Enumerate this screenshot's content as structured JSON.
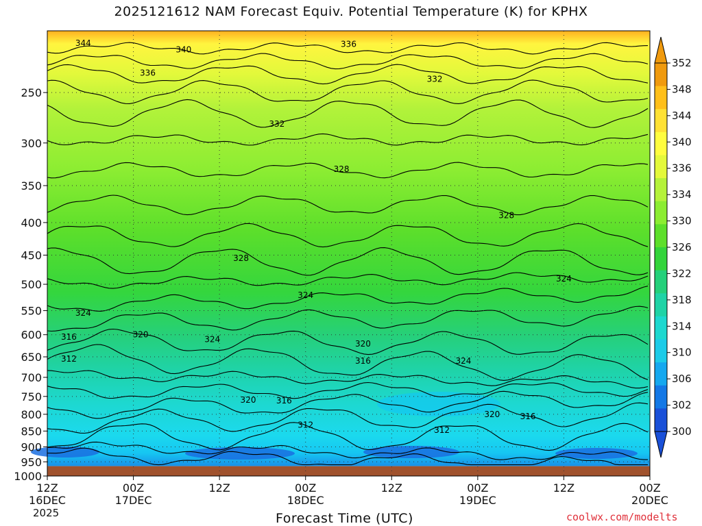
{
  "title": "2025121612 NAM Forecast Equiv. Potential Temperature (K) for KPHX",
  "credit": "coolwx.com/modelts",
  "chart_data": {
    "type": "heatmap",
    "title": "2025121612 NAM Forecast Equiv. Potential Temperature (K) for KPHX",
    "xlabel": "Forecast Time (UTC)",
    "ylabel": "",
    "x_ticks": [
      {
        "label": "12Z",
        "sub": "16DEC",
        "hour": 0
      },
      {
        "label": "00Z",
        "sub": "17DEC",
        "hour": 12
      },
      {
        "label": "12Z",
        "sub": "",
        "hour": 24
      },
      {
        "label": "00Z",
        "sub": "18DEC",
        "hour": 36
      },
      {
        "label": "12Z",
        "sub": "",
        "hour": 48
      },
      {
        "label": "00Z",
        "sub": "19DEC",
        "hour": 60
      },
      {
        "label": "12Z",
        "sub": "",
        "hour": 72
      },
      {
        "label": "00Z",
        "sub": "20DEC",
        "hour": 84
      }
    ],
    "year_label": "2025",
    "xlim": [
      0,
      84
    ],
    "y_ticks": [
      250,
      300,
      350,
      400,
      450,
      500,
      550,
      600,
      650,
      700,
      750,
      800,
      850,
      900,
      950,
      1000
    ],
    "ylim_hpa": [
      200,
      1000
    ],
    "ground_hpa": 965,
    "colorbar": {
      "labels": [
        352,
        348,
        344,
        340,
        336,
        334,
        330,
        326,
        322,
        318,
        314,
        310,
        306,
        302,
        300
      ],
      "bands": [
        "#f09a0e",
        "#ffbf1a",
        "#ffe135",
        "#fffd3f",
        "#e4f93b",
        "#b5f23a",
        "#8ced32",
        "#5ddf2b",
        "#33d43b",
        "#24d07a",
        "#1fd3a6",
        "#1dd8cf",
        "#1ccbe8",
        "#15a8ef",
        "#1478e6",
        "#1a50d8"
      ]
    },
    "contours": [
      {
        "value": "344",
        "hour": 5,
        "hpa": 209
      },
      {
        "value": "340",
        "hour": 19,
        "hpa": 214
      },
      {
        "value": "336",
        "hour": 42,
        "hpa": 210
      },
      {
        "value": "336",
        "hour": 14,
        "hpa": 233
      },
      {
        "value": "332",
        "hour": 54,
        "hpa": 238
      },
      {
        "value": "332",
        "hour": 32,
        "hpa": 280
      },
      {
        "value": "328",
        "hour": 41,
        "hpa": 330
      },
      {
        "value": "328",
        "hour": 64,
        "hpa": 390
      },
      {
        "value": "328",
        "hour": 27,
        "hpa": 455
      },
      {
        "value": "324",
        "hour": 72,
        "hpa": 490
      },
      {
        "value": "324",
        "hour": 36,
        "hpa": 520
      },
      {
        "value": "324",
        "hour": 5,
        "hpa": 555
      },
      {
        "value": "324",
        "hour": 23,
        "hpa": 610
      },
      {
        "value": "324",
        "hour": 58,
        "hpa": 660
      },
      {
        "value": "320",
        "hour": 13,
        "hpa": 600
      },
      {
        "value": "320",
        "hour": 44,
        "hpa": 620
      },
      {
        "value": "320",
        "hour": 28,
        "hpa": 760
      },
      {
        "value": "320",
        "hour": 62,
        "hpa": 800
      },
      {
        "value": "316",
        "hour": 3,
        "hpa": 605
      },
      {
        "value": "316",
        "hour": 44,
        "hpa": 660
      },
      {
        "value": "316",
        "hour": 33,
        "hpa": 762
      },
      {
        "value": "316",
        "hour": 67,
        "hpa": 806
      },
      {
        "value": "312",
        "hour": 3,
        "hpa": 655
      },
      {
        "value": "312",
        "hour": 36,
        "hpa": 832
      },
      {
        "value": "312",
        "hour": 55,
        "hpa": 847
      }
    ]
  }
}
